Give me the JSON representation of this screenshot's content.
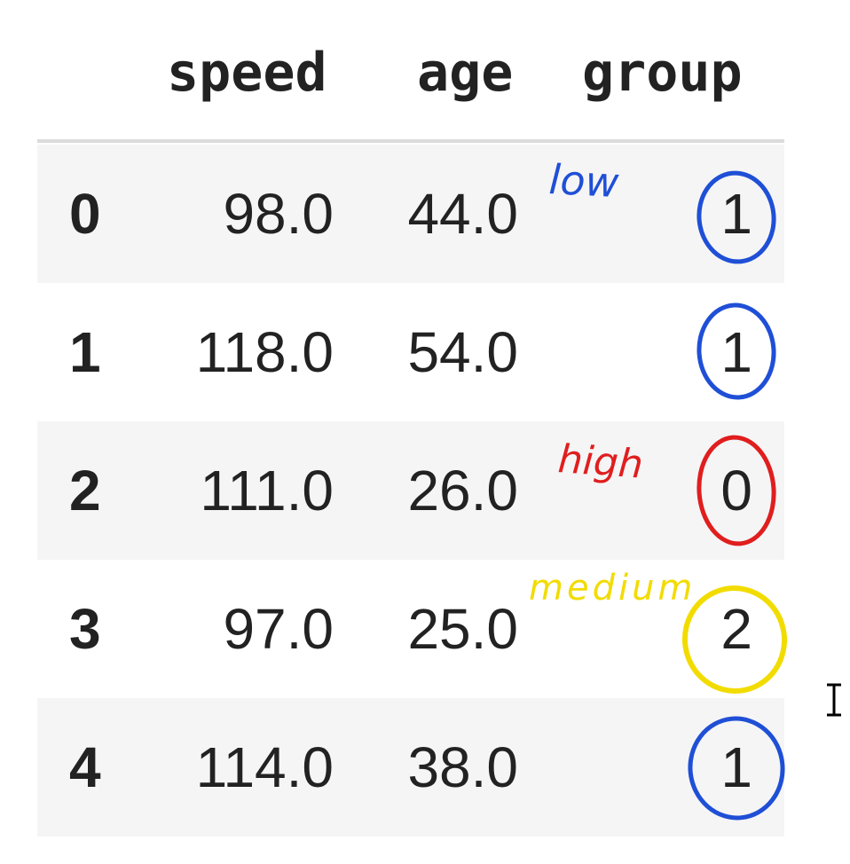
{
  "table": {
    "columns": [
      "speed",
      "age",
      "group"
    ],
    "rows": [
      {
        "index": "0",
        "speed": "98.0",
        "age": "44.0",
        "group": "1"
      },
      {
        "index": "1",
        "speed": "118.0",
        "age": "54.0",
        "group": "1"
      },
      {
        "index": "2",
        "speed": "111.0",
        "age": "26.0",
        "group": "0"
      },
      {
        "index": "3",
        "speed": "97.0",
        "age": "25.0",
        "group": "2"
      },
      {
        "index": "4",
        "speed": "114.0",
        "age": "38.0",
        "group": "1"
      }
    ]
  },
  "annotations": {
    "low_label": "low",
    "high_label": "high",
    "medium_label": "medium",
    "colors": {
      "low": "#1f4fd6",
      "high": "#e01e1e",
      "medium": "#f2dc00"
    }
  },
  "cursor": {
    "icon": "text-cursor-icon"
  }
}
